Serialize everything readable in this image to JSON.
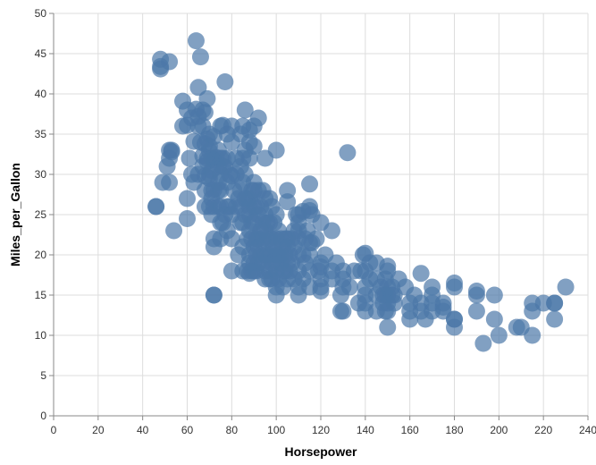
{
  "chart_data": {
    "type": "scatter",
    "title": "",
    "xlabel": "Horsepower",
    "ylabel": "Miles_per_Gallon",
    "xlim": [
      0,
      240
    ],
    "ylim": [
      0,
      50
    ],
    "x_ticks": [
      0,
      20,
      40,
      60,
      80,
      100,
      120,
      140,
      160,
      180,
      200,
      220,
      240
    ],
    "y_ticks": [
      0,
      5,
      10,
      15,
      20,
      25,
      30,
      35,
      40,
      45,
      50
    ],
    "grid": true,
    "legend": "none",
    "point_color": "#4c78a8",
    "series": [
      {
        "points": [
          [
            46,
            26
          ],
          [
            46,
            26
          ],
          [
            48,
            43.1
          ],
          [
            48,
            44.3
          ],
          [
            48,
            43.4
          ],
          [
            49,
            29
          ],
          [
            52,
            29
          ],
          [
            52,
            44
          ],
          [
            52,
            33
          ],
          [
            53,
            32.8
          ],
          [
            53,
            33
          ],
          [
            54,
            23
          ],
          [
            51,
            31
          ],
          [
            52,
            32
          ],
          [
            58,
            39.1
          ],
          [
            58,
            36
          ],
          [
            60,
            36.1
          ],
          [
            60,
            27
          ],
          [
            60,
            24.5
          ],
          [
            60,
            38
          ],
          [
            61,
            32
          ],
          [
            62,
            30
          ],
          [
            62,
            37
          ],
          [
            63,
            34.1
          ],
          [
            63,
            29
          ],
          [
            64,
            46.6
          ],
          [
            64,
            38.1
          ],
          [
            65,
            40.8
          ],
          [
            65,
            36
          ],
          [
            65,
            37.2
          ],
          [
            65,
            30
          ],
          [
            66,
            44.6
          ],
          [
            66,
            34
          ],
          [
            67,
            32.3
          ],
          [
            67,
            38
          ],
          [
            67,
            36
          ],
          [
            67,
            31
          ],
          [
            68,
            37.7
          ],
          [
            68,
            33.8
          ],
          [
            68,
            29.8
          ],
          [
            68,
            28
          ],
          [
            68,
            26
          ],
          [
            69,
            39.4
          ],
          [
            69,
            34.4
          ],
          [
            69,
            32
          ],
          [
            69,
            31.6
          ],
          [
            70,
            30
          ],
          [
            70,
            35
          ],
          [
            70,
            33.5
          ],
          [
            70,
            29.5
          ],
          [
            70,
            26
          ],
          [
            70,
            32.9
          ],
          [
            71,
            28
          ],
          [
            71,
            32
          ],
          [
            71,
            30.5
          ],
          [
            71,
            25
          ],
          [
            71,
            27
          ],
          [
            72,
            15
          ],
          [
            72,
            15
          ],
          [
            72,
            21
          ],
          [
            72,
            22
          ],
          [
            72,
            26
          ],
          [
            72,
            28.1
          ],
          [
            72,
            31.8
          ],
          [
            72,
            34.7
          ],
          [
            73,
            32.1
          ],
          [
            74,
            26
          ],
          [
            74,
            28
          ],
          [
            74,
            29
          ],
          [
            74,
            31
          ],
          [
            74,
            33
          ],
          [
            75,
            22
          ],
          [
            75,
            24
          ],
          [
            75,
            26
          ],
          [
            75,
            28
          ],
          [
            75,
            30
          ],
          [
            75,
            32
          ],
          [
            75,
            36
          ],
          [
            76,
            24
          ],
          [
            76,
            31
          ],
          [
            76,
            32
          ],
          [
            76,
            36.1
          ],
          [
            77,
            41.5
          ],
          [
            77,
            30.9
          ],
          [
            77,
            25
          ],
          [
            78,
            23
          ],
          [
            78,
            26
          ],
          [
            78,
            29
          ],
          [
            78,
            32
          ],
          [
            78,
            35
          ],
          [
            79,
            26
          ],
          [
            79,
            30
          ],
          [
            80,
            22
          ],
          [
            80,
            25
          ],
          [
            80,
            29.8
          ],
          [
            80,
            34
          ],
          [
            80,
            36
          ],
          [
            80,
            18
          ],
          [
            81,
            28
          ],
          [
            82,
            26
          ],
          [
            82,
            30
          ],
          [
            82,
            32
          ],
          [
            83,
            27
          ],
          [
            83,
            20
          ],
          [
            84,
            26
          ],
          [
            84,
            28
          ],
          [
            84,
            24
          ],
          [
            84,
            31
          ],
          [
            84,
            35
          ],
          [
            85,
            32
          ],
          [
            85,
            29
          ],
          [
            85,
            24
          ],
          [
            85,
            21
          ],
          [
            85,
            18
          ],
          [
            85,
            36
          ],
          [
            86,
            27
          ],
          [
            86,
            25
          ],
          [
            86,
            33
          ],
          [
            86,
            38
          ],
          [
            86,
            30
          ],
          [
            87,
            27
          ],
          [
            87,
            22
          ],
          [
            87,
            18
          ],
          [
            88,
            27
          ],
          [
            88,
            25
          ],
          [
            88,
            20
          ],
          [
            88,
            23
          ],
          [
            88,
            26
          ],
          [
            88,
            17.7
          ],
          [
            88,
            19
          ],
          [
            88,
            34
          ],
          [
            88,
            35.5
          ],
          [
            88,
            32
          ],
          [
            89,
            24
          ],
          [
            89,
            22
          ],
          [
            89,
            28
          ],
          [
            89,
            18
          ],
          [
            90,
            28
          ],
          [
            90,
            26
          ],
          [
            90,
            24
          ],
          [
            90,
            21
          ],
          [
            90,
            19
          ],
          [
            90,
            36
          ],
          [
            90,
            33.5
          ],
          [
            90,
            29
          ],
          [
            90,
            18
          ],
          [
            91,
            26
          ],
          [
            91,
            20
          ],
          [
            91,
            22
          ],
          [
            91,
            18
          ],
          [
            92,
            28
          ],
          [
            92,
            25
          ],
          [
            92,
            22
          ],
          [
            92,
            19
          ],
          [
            92,
            37
          ],
          [
            92,
            21
          ],
          [
            93,
            26
          ],
          [
            93,
            23
          ],
          [
            93,
            20
          ],
          [
            94,
            28
          ],
          [
            94,
            24
          ],
          [
            94,
            22
          ],
          [
            94,
            19
          ],
          [
            95,
            27
          ],
          [
            95,
            25
          ],
          [
            95,
            23
          ],
          [
            95,
            20
          ],
          [
            95,
            18
          ],
          [
            95,
            17
          ],
          [
            95,
            32
          ],
          [
            96,
            24
          ],
          [
            96,
            22
          ],
          [
            96,
            20
          ],
          [
            97,
            27
          ],
          [
            97,
            24
          ],
          [
            97,
            22
          ],
          [
            97,
            20
          ],
          [
            97,
            18
          ],
          [
            97,
            17
          ],
          [
            98,
            26
          ],
          [
            98,
            22
          ],
          [
            98,
            20
          ],
          [
            98,
            19
          ],
          [
            98,
            17
          ],
          [
            99,
            24
          ],
          [
            99,
            21
          ],
          [
            100,
            25
          ],
          [
            100,
            22
          ],
          [
            100,
            20
          ],
          [
            100,
            18
          ],
          [
            100,
            16
          ],
          [
            100,
            15
          ],
          [
            100,
            33
          ],
          [
            100,
            19
          ],
          [
            101,
            23
          ],
          [
            101,
            20
          ],
          [
            101,
            17
          ],
          [
            102,
            22
          ],
          [
            102,
            20
          ],
          [
            102,
            19
          ],
          [
            103,
            21
          ],
          [
            103,
            18
          ],
          [
            103,
            16
          ],
          [
            104,
            22
          ],
          [
            104,
            20
          ],
          [
            104,
            18
          ],
          [
            105,
            26.6
          ],
          [
            105,
            28
          ],
          [
            105,
            21
          ],
          [
            105,
            19
          ],
          [
            105,
            17
          ],
          [
            105,
            22
          ],
          [
            106,
            20
          ],
          [
            106,
            18
          ],
          [
            107,
            22
          ],
          [
            107,
            19
          ],
          [
            108,
            23
          ],
          [
            108,
            21
          ],
          [
            108,
            17
          ],
          [
            109,
            25
          ],
          [
            110,
            25
          ],
          [
            110,
            23
          ],
          [
            110,
            20
          ],
          [
            110,
            18
          ],
          [
            110,
            16
          ],
          [
            110,
            15
          ],
          [
            110,
            24
          ],
          [
            110,
            22
          ],
          [
            112,
            25.4
          ],
          [
            112,
            20
          ],
          [
            112,
            17
          ],
          [
            113,
            22
          ],
          [
            113,
            19
          ],
          [
            114,
            23
          ],
          [
            115,
            28.8
          ],
          [
            115,
            26
          ],
          [
            115,
            25.5
          ],
          [
            115,
            21.5
          ],
          [
            115,
            20
          ],
          [
            115,
            18
          ],
          [
            115,
            16
          ],
          [
            116,
            25
          ],
          [
            116,
            21.5
          ],
          [
            118,
            22
          ],
          [
            119,
            18
          ],
          [
            120,
            24
          ],
          [
            120,
            19
          ],
          [
            120,
            17
          ],
          [
            120,
            16
          ],
          [
            120,
            15.5
          ],
          [
            120,
            18.5
          ],
          [
            122,
            20
          ],
          [
            125,
            18
          ],
          [
            125,
            17
          ],
          [
            125,
            23
          ],
          [
            127,
            19
          ],
          [
            129,
            13
          ],
          [
            129,
            15
          ],
          [
            130,
            13
          ],
          [
            130,
            18
          ],
          [
            130,
            17
          ],
          [
            130,
            16
          ],
          [
            132,
            32.7
          ],
          [
            133,
            16
          ],
          [
            135,
            18
          ],
          [
            137,
            14
          ],
          [
            138,
            18
          ],
          [
            139,
            20
          ],
          [
            140,
            20.2
          ],
          [
            140,
            18
          ],
          [
            140,
            16
          ],
          [
            140,
            15
          ],
          [
            140,
            14
          ],
          [
            140,
            13
          ],
          [
            142,
            17
          ],
          [
            142,
            19
          ],
          [
            145,
            17
          ],
          [
            145,
            19
          ],
          [
            145,
            15
          ],
          [
            145,
            13
          ],
          [
            147,
            16
          ],
          [
            148,
            14
          ],
          [
            148,
            15
          ],
          [
            149,
            13
          ],
          [
            149,
            15
          ],
          [
            149,
            17
          ],
          [
            150,
            18.6
          ],
          [
            150,
            18
          ],
          [
            150,
            16
          ],
          [
            150,
            15
          ],
          [
            150,
            14
          ],
          [
            150,
            13
          ],
          [
            150,
            11
          ],
          [
            152,
            16
          ],
          [
            152,
            15
          ],
          [
            153,
            15
          ],
          [
            153,
            14
          ],
          [
            155,
            17
          ],
          [
            158,
            16
          ],
          [
            160,
            13
          ],
          [
            160,
            12
          ],
          [
            160,
            14
          ],
          [
            162,
            15
          ],
          [
            165,
            17.7
          ],
          [
            165,
            14
          ],
          [
            165,
            13
          ],
          [
            167,
            12
          ],
          [
            170,
            16
          ],
          [
            170,
            15
          ],
          [
            170,
            14
          ],
          [
            170,
            13
          ],
          [
            175,
            14
          ],
          [
            175,
            13
          ],
          [
            175,
            13.5
          ],
          [
            180,
            16.5
          ],
          [
            180,
            16
          ],
          [
            180,
            12
          ],
          [
            180,
            11
          ],
          [
            180,
            12
          ],
          [
            190,
            15.5
          ],
          [
            190,
            13
          ],
          [
            190,
            15
          ],
          [
            193,
            9
          ],
          [
            198,
            12
          ],
          [
            198,
            15
          ],
          [
            200,
            10
          ],
          [
            208,
            11
          ],
          [
            210,
            11
          ],
          [
            215,
            14
          ],
          [
            215,
            10
          ],
          [
            215,
            13
          ],
          [
            220,
            14
          ],
          [
            225,
            14
          ],
          [
            225,
            12
          ],
          [
            225,
            14
          ],
          [
            230,
            16
          ]
        ]
      }
    ]
  }
}
